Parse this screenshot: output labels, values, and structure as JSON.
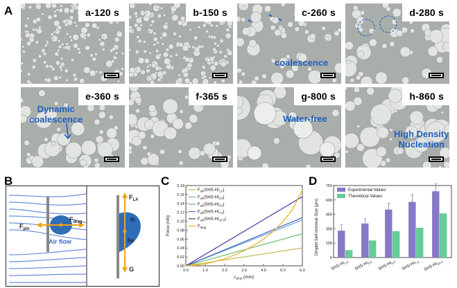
{
  "panels": {
    "A": "A",
    "B": "B",
    "C": "C",
    "D": "D"
  },
  "tiles": [
    {
      "label": "a-120 s",
      "annotation": ""
    },
    {
      "label": "b-150 s",
      "annotation": ""
    },
    {
      "label": "c-260 s",
      "annotation": "coalescence"
    },
    {
      "label": "d-280 s",
      "annotation": ""
    },
    {
      "label": "e-360 s",
      "annotation": "Dynamic\ncoalescence"
    },
    {
      "label": "f-365 s",
      "annotation": ""
    },
    {
      "label": "g-800 s",
      "annotation": "Water-free"
    },
    {
      "label": "h-860 s",
      "annotation": "High Density\nNucleation"
    }
  ],
  "schematic": {
    "f_la": "F",
    "f_la_sub": "LA",
    "f_pin": "F",
    "f_pin_sub": "pin",
    "f_drag": "F",
    "f_drag_sub": "drag",
    "air_flow": "Air flow",
    "theta_r": "θr",
    "theta_a": "θa",
    "g": "G",
    "colors": {
      "flow": "#6a8fd8",
      "droplet": "#2f6db8",
      "arrow": "#f2a21b"
    }
  },
  "chart_data": [
    {
      "type": "line",
      "xlabel": "r",
      "xlabel_sub": "drop",
      "xlabel_unit": "(mm)",
      "ylabel": "Force (mN)",
      "xlim": [
        0,
        6.0
      ],
      "ylim": [
        0,
        0.18
      ],
      "xticks": [
        "0.0",
        "1.0",
        "2.0",
        "3.0",
        "4.0",
        "5.0",
        "6.0"
      ],
      "yticks": [
        "0.00",
        "0.02",
        "0.04",
        "0.06",
        "0.08",
        "0.10",
        "0.12",
        "0.14",
        "0.16",
        "0.18"
      ],
      "legend_position": "top-left",
      "series": [
        {
          "name": "F",
          "sub": "ad",
          "tag": "(SHS-HI",
          "tag_sub": "1.0",
          "tail": ")",
          "color": "#c8c060",
          "x": [
            0,
            6.0
          ],
          "y": [
            0,
            0.04
          ]
        },
        {
          "name": "F",
          "sub": "ad",
          "tag": "(SHS-HI",
          "tag_sub": "3.0",
          "tail": ")",
          "color": "#7ac27a",
          "x": [
            0,
            6.0
          ],
          "y": [
            0,
            0.072
          ]
        },
        {
          "name": "F",
          "sub": "ad",
          "tag": "(SHS-HI",
          "tag_sub": "5.0",
          "tail": ")",
          "color": "#6fa8dc",
          "x": [
            0,
            6.0
          ],
          "y": [
            0,
            0.103
          ]
        },
        {
          "name": "F",
          "sub": "ad",
          "tag": "(SHS-HI",
          "tag_sub": "7.0",
          "tail": ")",
          "color": "#4a6fc0",
          "x": [
            0,
            6.0
          ],
          "y": [
            0,
            0.108
          ]
        },
        {
          "name": "F",
          "sub": "ad",
          "tag": "(SHS-HI",
          "tag_sub": "10.0",
          "tail": ")",
          "color": "#5a3fa8",
          "x": [
            0,
            6.0
          ],
          "y": [
            0,
            0.155
          ]
        },
        {
          "name": "F",
          "sub": "drag",
          "tag": "",
          "tag_sub": "",
          "tail": "",
          "color": "#f0b429",
          "x": [
            0,
            0.5,
            1,
            1.5,
            2,
            2.5,
            3,
            3.5,
            4,
            4.5,
            5,
            5.5,
            6.0
          ],
          "y": [
            0,
            0.0012,
            0.0045,
            0.0095,
            0.016,
            0.024,
            0.034,
            0.046,
            0.06,
            0.077,
            0.099,
            0.127,
            0.17
          ]
        }
      ]
    },
    {
      "type": "bar",
      "ylabel": "Droplet Self-removal Size (μm)",
      "ylim": [
        0,
        750
      ],
      "yticks": [
        "0",
        "150",
        "300",
        "450",
        "600",
        "750"
      ],
      "categories": [
        {
          "main": "SHS-HI",
          "sub": "1.0"
        },
        {
          "main": "SHS-HI",
          "sub": "3.0"
        },
        {
          "main": "SHS-HI",
          "sub": "5.0"
        },
        {
          "main": "SHS-HI",
          "sub": "7.0"
        },
        {
          "main": "SHS-HI",
          "sub": "10.0"
        }
      ],
      "legend_position": "top-left",
      "series": [
        {
          "name": "Experimental Values",
          "color": "#8878c8",
          "values": [
            280,
            355,
            500,
            580,
            690
          ],
          "errors": [
            60,
            50,
            65,
            75,
            80
          ]
        },
        {
          "name": "Theoretical Values",
          "color": "#66cc99",
          "values": [
            78,
            178,
            275,
            310,
            460
          ],
          "errors": [
            0,
            0,
            0,
            0,
            0
          ]
        }
      ]
    }
  ]
}
